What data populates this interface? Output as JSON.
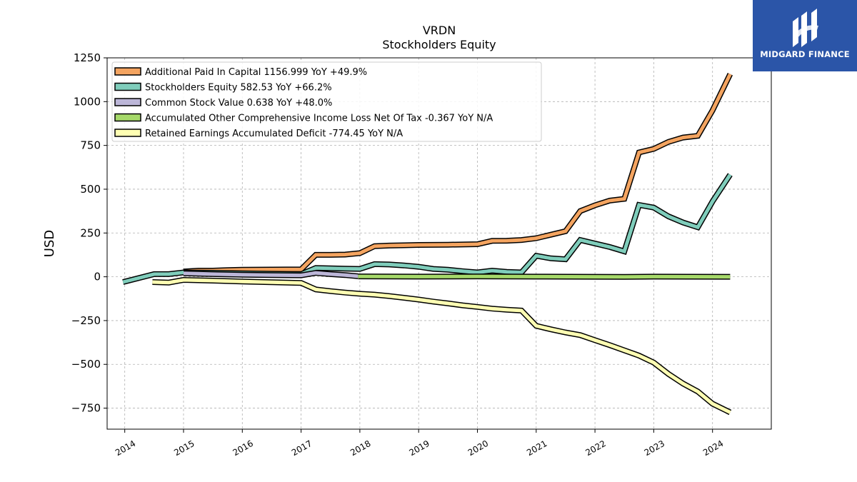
{
  "brand": {
    "name": "MIDGARD FINANCE",
    "logo_icon": "midgard-logo-icon",
    "background": "#2b55a8"
  },
  "chart_data": {
    "type": "line",
    "title": "VRDN",
    "subtitle": "Stockholders  Equity",
    "ylabel": "USD",
    "xlabel": "",
    "xlim": [
      2013.7,
      2025.0
    ],
    "ylim": [
      -870,
      1250
    ],
    "yticks": [
      -750,
      -500,
      -250,
      0,
      250,
      500,
      750,
      1000,
      1250
    ],
    "ytick_labels": [
      "−750",
      "−500",
      "−250",
      "0",
      "250",
      "500",
      "750",
      "1000",
      "1250"
    ],
    "xticks": [
      2014,
      2015,
      2016,
      2017,
      2018,
      2019,
      2020,
      2021,
      2022,
      2023,
      2024
    ],
    "xtick_labels": [
      "2014",
      "2015",
      "2016",
      "2017",
      "2018",
      "2019",
      "2020",
      "2021",
      "2022",
      "2023",
      "2024"
    ],
    "grid": true,
    "legend_position": "top-left",
    "series": [
      {
        "name": "Additional Paid In Capital  1156.999 YoY +49.9%",
        "color": "#f4a460",
        "points": [
          [
            2015.0,
            30
          ],
          [
            2015.25,
            35
          ],
          [
            2015.5,
            35
          ],
          [
            2015.75,
            38
          ],
          [
            2016.0,
            40
          ],
          [
            2016.5,
            41
          ],
          [
            2017.0,
            42
          ],
          [
            2017.25,
            125
          ],
          [
            2017.5,
            125
          ],
          [
            2017.75,
            127
          ],
          [
            2018.0,
            135
          ],
          [
            2018.25,
            175
          ],
          [
            2018.5,
            178
          ],
          [
            2018.75,
            180
          ],
          [
            2019.0,
            182
          ],
          [
            2019.5,
            183
          ],
          [
            2020.0,
            186
          ],
          [
            2020.25,
            205
          ],
          [
            2020.5,
            206
          ],
          [
            2020.75,
            210
          ],
          [
            2021.0,
            220
          ],
          [
            2021.25,
            240
          ],
          [
            2021.5,
            260
          ],
          [
            2021.75,
            375
          ],
          [
            2022.0,
            408
          ],
          [
            2022.25,
            435
          ],
          [
            2022.5,
            445
          ],
          [
            2022.75,
            710
          ],
          [
            2023.0,
            730
          ],
          [
            2023.25,
            770
          ],
          [
            2023.5,
            795
          ],
          [
            2023.75,
            805
          ],
          [
            2024.0,
            950
          ],
          [
            2024.3,
            1157
          ]
        ]
      },
      {
        "name": "Stockholders Equity  582.53 YoY +66.2%",
        "color": "#7fcdbb",
        "points": [
          [
            2013.97,
            -30
          ],
          [
            2014.5,
            15
          ],
          [
            2014.75,
            15
          ],
          [
            2015.0,
            25
          ],
          [
            2015.5,
            23
          ],
          [
            2016.0,
            20
          ],
          [
            2016.5,
            17
          ],
          [
            2017.0,
            15
          ],
          [
            2017.25,
            50
          ],
          [
            2017.5,
            48
          ],
          [
            2017.75,
            46
          ],
          [
            2018.0,
            45
          ],
          [
            2018.25,
            72
          ],
          [
            2018.5,
            70
          ],
          [
            2018.75,
            65
          ],
          [
            2019.0,
            57
          ],
          [
            2019.25,
            45
          ],
          [
            2019.5,
            40
          ],
          [
            2019.75,
            32
          ],
          [
            2020.0,
            25
          ],
          [
            2020.25,
            35
          ],
          [
            2020.5,
            28
          ],
          [
            2020.75,
            25
          ],
          [
            2021.0,
            120
          ],
          [
            2021.25,
            105
          ],
          [
            2021.5,
            100
          ],
          [
            2021.75,
            210
          ],
          [
            2022.0,
            190
          ],
          [
            2022.25,
            170
          ],
          [
            2022.5,
            145
          ],
          [
            2022.75,
            410
          ],
          [
            2023.0,
            395
          ],
          [
            2023.25,
            345
          ],
          [
            2023.5,
            310
          ],
          [
            2023.75,
            283
          ],
          [
            2024.0,
            430
          ],
          [
            2024.3,
            583
          ]
        ]
      },
      {
        "name": "Common Stock Value  0.638 YoY +48.0%",
        "color": "#bcb6d8",
        "points": [
          [
            2015.0,
            20
          ],
          [
            2015.5,
            15
          ],
          [
            2016.0,
            12
          ],
          [
            2016.5,
            10
          ],
          [
            2017.0,
            8
          ],
          [
            2017.25,
            22
          ],
          [
            2017.5,
            15
          ],
          [
            2017.75,
            10
          ],
          [
            2017.97,
            3
          ]
        ]
      },
      {
        "name": "Accumulated Other Comprehensive Income Loss Net Of Tax  -0.367 YoY N/A",
        "color": "#a6d96a",
        "points": [
          [
            2017.97,
            2
          ],
          [
            2019.0,
            1
          ],
          [
            2020.0,
            2
          ],
          [
            2021.0,
            1
          ],
          [
            2022.0,
            0
          ],
          [
            2022.5,
            -1
          ],
          [
            2023.0,
            1
          ],
          [
            2024.3,
            0
          ]
        ]
      },
      {
        "name": "Retained Earnings Accumulated Deficit  -774.45 YoY N/A",
        "color": "#ffffb3",
        "points": [
          [
            2014.47,
            -30
          ],
          [
            2014.75,
            -33
          ],
          [
            2015.0,
            -18
          ],
          [
            2015.5,
            -22
          ],
          [
            2016.0,
            -27
          ],
          [
            2016.5,
            -31
          ],
          [
            2017.0,
            -35
          ],
          [
            2017.25,
            -72
          ],
          [
            2017.5,
            -82
          ],
          [
            2017.75,
            -90
          ],
          [
            2018.0,
            -97
          ],
          [
            2018.25,
            -102
          ],
          [
            2018.5,
            -110
          ],
          [
            2018.75,
            -120
          ],
          [
            2019.0,
            -130
          ],
          [
            2019.25,
            -142
          ],
          [
            2019.5,
            -152
          ],
          [
            2019.75,
            -163
          ],
          [
            2020.0,
            -172
          ],
          [
            2020.25,
            -182
          ],
          [
            2020.5,
            -188
          ],
          [
            2020.75,
            -193
          ],
          [
            2021.0,
            -280
          ],
          [
            2021.25,
            -300
          ],
          [
            2021.5,
            -318
          ],
          [
            2021.75,
            -333
          ],
          [
            2022.0,
            -362
          ],
          [
            2022.25,
            -390
          ],
          [
            2022.5,
            -420
          ],
          [
            2022.75,
            -450
          ],
          [
            2023.0,
            -490
          ],
          [
            2023.25,
            -555
          ],
          [
            2023.5,
            -610
          ],
          [
            2023.75,
            -655
          ],
          [
            2024.0,
            -725
          ],
          [
            2024.3,
            -774
          ]
        ]
      }
    ]
  }
}
